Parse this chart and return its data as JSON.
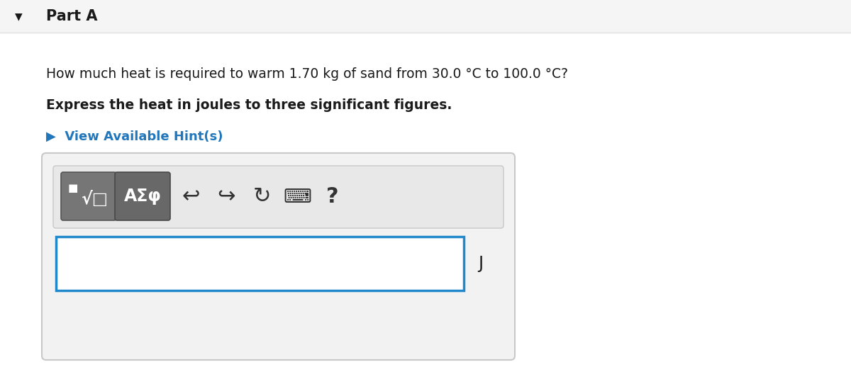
{
  "white_bg": "#ffffff",
  "header_bg": "#f5f5f5",
  "header_border": "#e0e0e0",
  "part_a_label": "Part A",
  "question_line": "How much heat is required to warm 1.70 kg of sand from 30.0 °C to 100.0 °C?",
  "bold_line": "Express the heat in joules to three significant figures.",
  "hint_text": "▶  View Available Hint(s)",
  "hint_color": "#2277bb",
  "unit_label": "J",
  "toolbar_bg": "#e8e8e8",
  "toolbar_border": "#c8c8c8",
  "btn1_bg": "#767676",
  "btn1_border": "#555555",
  "btn2_bg": "#686868",
  "btn2_border": "#484848",
  "input_border_color": "#2288cc",
  "input_bg": "#ffffff",
  "outer_box_bg": "#f2f2f2",
  "outer_box_border": "#c8c8c8",
  "arrow_down_symbol": "▼",
  "icon_color": "#333333",
  "text_color": "#1a1a1a"
}
